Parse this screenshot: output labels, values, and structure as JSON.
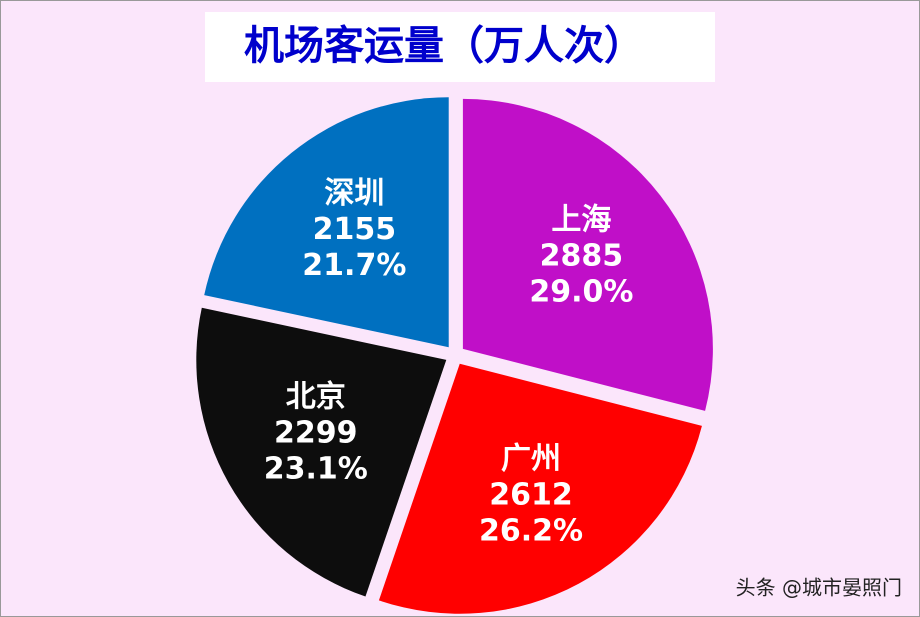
{
  "chart_data": {
    "type": "pie",
    "title": "机场客运量（万人次）",
    "categories": [
      "上海",
      "广州",
      "北京",
      "深圳"
    ],
    "values": [
      2885,
      2612,
      2299,
      2155
    ],
    "percent_labels": [
      "29.0%",
      "26.2%",
      "23.1%",
      "21.7%"
    ],
    "colors": [
      "#c00fc8",
      "#ff0000",
      "#0d0d0d",
      "#0070c0"
    ],
    "watermark": "头条 @城市晏照门"
  }
}
